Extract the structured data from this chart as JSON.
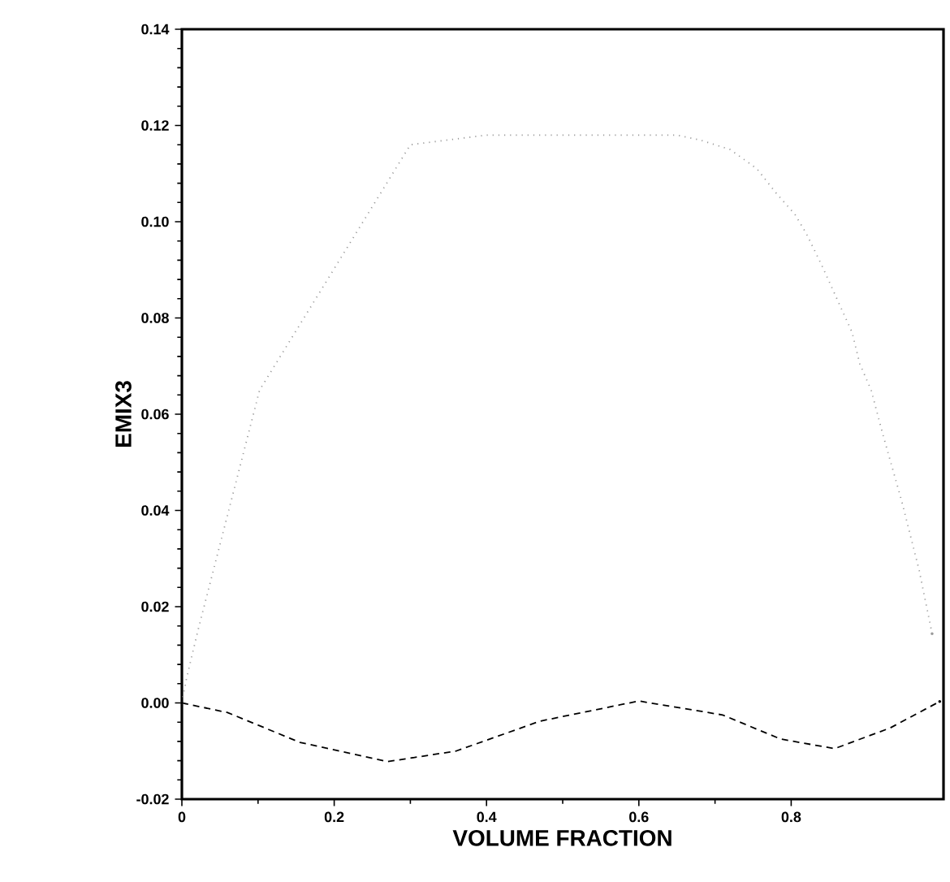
{
  "chart_data": {
    "type": "line",
    "xlabel": "VOLUME FRACTION",
    "ylabel": "EMIX3",
    "xlim": [
      0,
      1
    ],
    "ylim": [
      -0.02,
      0.14
    ],
    "xticks": [
      0,
      0.2,
      0.4,
      0.6,
      0.8
    ],
    "yticks": [
      {
        "value": -0.02,
        "label": "-0.02"
      },
      {
        "value": 0,
        "label": "0.00"
      },
      {
        "value": 0.02,
        "label": "0.02"
      },
      {
        "value": 0.04,
        "label": "0.04"
      },
      {
        "value": 0.06,
        "label": "0.06"
      },
      {
        "value": 0.08,
        "label": "0.08"
      },
      {
        "value": 0.1,
        "label": "0.10"
      },
      {
        "value": 0.12,
        "label": "0.12"
      },
      {
        "value": 0.14,
        "label": "0.14"
      }
    ],
    "series": [
      {
        "color": "#999999",
        "line_style": "dotted",
        "x": [
          0,
          0.006,
          0.021,
          0.102,
          0.3,
          0.4,
          0.5,
          0.6,
          0.65,
          0.68,
          0.72,
          0.755,
          0.78,
          0.805,
          0.82,
          0.84,
          0.88,
          0.89,
          0.905,
          0.92,
          0.945,
          0.968,
          0.985
        ],
        "values": [
          0,
          0.005,
          0.015,
          0.065,
          0.116,
          0.118,
          0.118,
          0.118,
          0.118,
          0.117,
          0.115,
          0.111,
          0.106,
          0.1015,
          0.0975,
          0.091,
          0.077,
          0.0705,
          0.065,
          0.056,
          0.042,
          0.0276,
          0.0144
        ]
      },
      {
        "color": "#000000",
        "line_style": "dashed",
        "x": [
          0,
          0.06,
          0.155,
          0.27,
          0.36,
          0.47,
          0.6,
          0.71,
          0.786,
          0.857,
          0.93,
          0.995
        ],
        "values": [
          0,
          -0.002,
          -0.0082,
          -0.0122,
          -0.01,
          -0.0038,
          0.0004,
          -0.0025,
          -0.0075,
          -0.0095,
          -0.0052,
          0.0003
        ]
      }
    ]
  }
}
